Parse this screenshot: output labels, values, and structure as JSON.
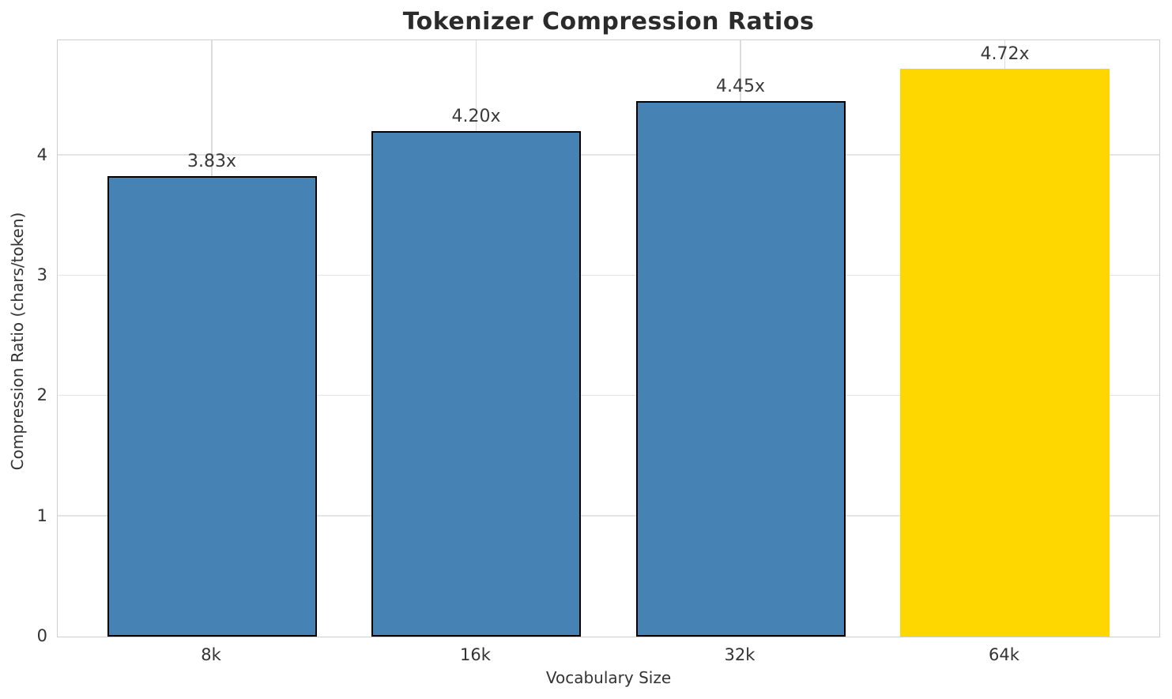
{
  "title": "Tokenizer Compression Ratios",
  "chart_data": {
    "type": "bar",
    "title": "Tokenizer Compression Ratios",
    "xlabel": "Vocabulary Size",
    "ylabel": "Compression Ratio (chars/token)",
    "categories": [
      "8k",
      "16k",
      "32k",
      "64k"
    ],
    "values": [
      3.83,
      4.2,
      4.45,
      4.72
    ],
    "bar_labels": [
      "3.83x",
      "4.20x",
      "4.45x",
      "4.72x"
    ],
    "yticks": [
      0,
      1,
      2,
      3,
      4
    ],
    "ylim": [
      0,
      4.97
    ],
    "grid": true,
    "legend": "none",
    "bar_colors": [
      "#4682B4",
      "#4682B4",
      "#4682B4",
      "#FFD700"
    ],
    "bar_edge_colors": [
      "#000000",
      "#000000",
      "#000000",
      "none"
    ],
    "base_color": "#4682B4",
    "highlight_color": "#FFD700",
    "edge_color": "#000000"
  }
}
